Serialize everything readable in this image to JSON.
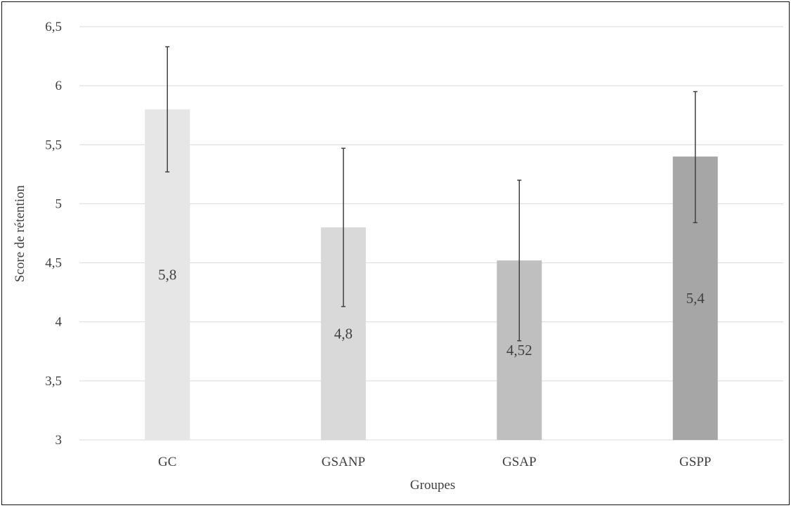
{
  "chart_data": {
    "type": "bar",
    "title": "",
    "xlabel": "Groupes",
    "ylabel": "Score de rétention",
    "ylim": [
      3,
      6.5
    ],
    "yticks": [
      "3",
      "3,5",
      "4",
      "4,5",
      "5",
      "5,5",
      "6",
      "6,5"
    ],
    "categories": [
      "GC",
      "GSANP",
      "GSAP",
      "GSPP"
    ],
    "values": [
      5.8,
      4.8,
      4.52,
      5.4
    ],
    "value_labels": [
      "5,8",
      "4,8",
      "4,52",
      "5,4"
    ],
    "error_low": [
      5.27,
      4.13,
      3.84,
      4.84
    ],
    "error_high": [
      6.33,
      5.47,
      5.2,
      5.95
    ],
    "bar_colors": [
      "#e6e6e6",
      "#d9d9d9",
      "#bfbfbf",
      "#a6a6a6"
    ],
    "grid": true,
    "legend": "none"
  }
}
